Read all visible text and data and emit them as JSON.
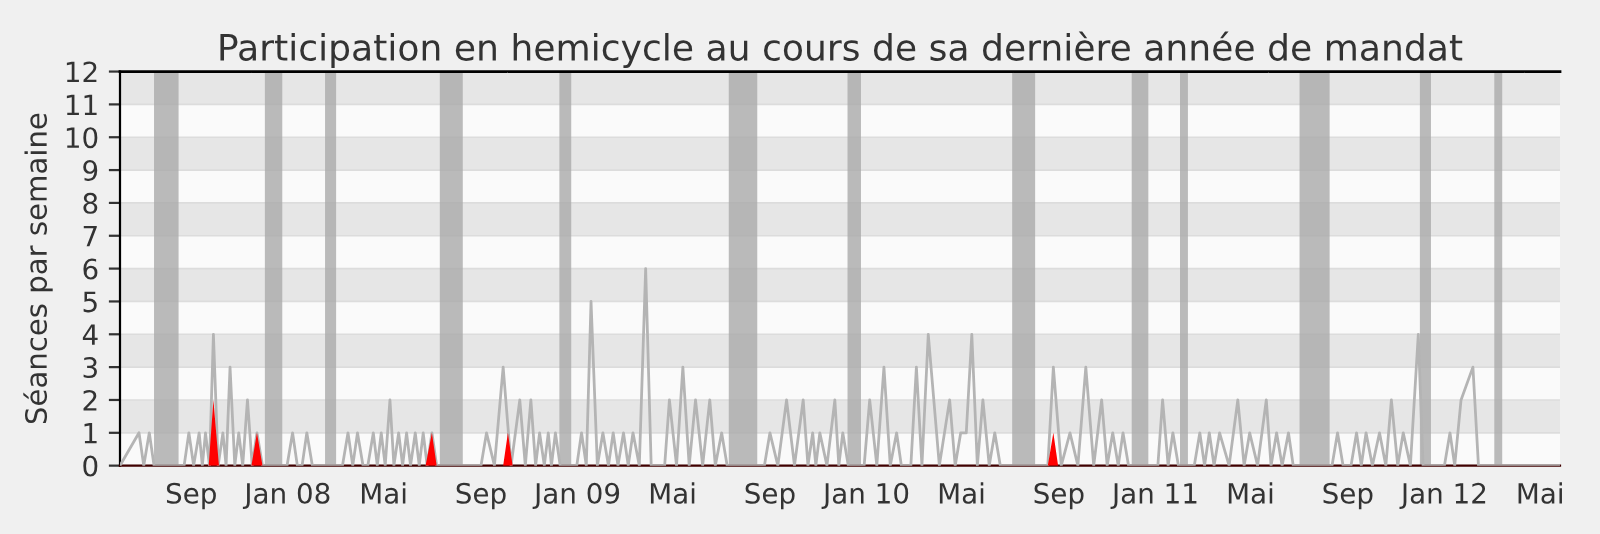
{
  "chart_data": {
    "type": "line",
    "title": "Participation en hemicycle au cours de sa dernière année de mandat",
    "ylabel": "Séances par semaine",
    "xlim": [
      "2007-06-03",
      "2012-05-26"
    ],
    "ylim": [
      0,
      12
    ],
    "xticks": [
      {
        "value": "2007-09-01",
        "label": "Sep"
      },
      {
        "value": "2008-01-01",
        "label": "Jan 08"
      },
      {
        "value": "2008-05-01",
        "label": "Mai"
      },
      {
        "value": "2008-09-01",
        "label": "Sep"
      },
      {
        "value": "2009-01-01",
        "label": "Jan 09"
      },
      {
        "value": "2009-05-01",
        "label": "Mai"
      },
      {
        "value": "2009-09-01",
        "label": "Sep"
      },
      {
        "value": "2010-01-01",
        "label": "Jan 10"
      },
      {
        "value": "2010-05-01",
        "label": "Mai"
      },
      {
        "value": "2010-09-01",
        "label": "Sep"
      },
      {
        "value": "2011-01-01",
        "label": "Jan 11"
      },
      {
        "value": "2011-05-01",
        "label": "Mai"
      },
      {
        "value": "2011-09-01",
        "label": "Sep"
      },
      {
        "value": "2012-01-01",
        "label": "Jan 12"
      },
      {
        "value": "2012-05-01",
        "label": "Mai"
      }
    ],
    "yticks": [
      0,
      1,
      2,
      3,
      4,
      5,
      6,
      7,
      8,
      9,
      10,
      11,
      12
    ],
    "grid": "y",
    "bands": [
      {
        "axis": "x",
        "from": "2007-07-16",
        "to": "2007-08-16",
        "color": "#aaaaaa"
      },
      {
        "axis": "x",
        "from": "2007-12-03",
        "to": "2007-12-25",
        "color": "#aaaaaa"
      },
      {
        "axis": "x",
        "from": "2008-02-17",
        "to": "2008-03-02",
        "color": "#aaaaaa"
      },
      {
        "axis": "x",
        "from": "2008-07-11",
        "to": "2008-08-09",
        "color": "#aaaaaa"
      },
      {
        "axis": "x",
        "from": "2008-12-09",
        "to": "2008-12-24",
        "color": "#aaaaaa"
      },
      {
        "axis": "x",
        "from": "2009-07-11",
        "to": "2009-08-16",
        "color": "#aaaaaa"
      },
      {
        "axis": "x",
        "from": "2009-12-08",
        "to": "2009-12-25",
        "color": "#aaaaaa"
      },
      {
        "axis": "x",
        "from": "2010-07-04",
        "to": "2010-08-02",
        "color": "#aaaaaa"
      },
      {
        "axis": "x",
        "from": "2010-12-02",
        "to": "2010-12-23",
        "color": "#aaaaaa"
      },
      {
        "axis": "x",
        "from": "2011-02-01",
        "to": "2011-02-11",
        "color": "#aaaaaa"
      },
      {
        "axis": "x",
        "from": "2011-07-02",
        "to": "2011-08-09",
        "color": "#aaaaaa"
      },
      {
        "axis": "x",
        "from": "2011-12-01",
        "to": "2011-12-15",
        "color": "#aaaaaa"
      },
      {
        "axis": "x",
        "from": "2012-03-04",
        "to": "2012-03-14",
        "color": "#aaaaaa"
      }
    ],
    "series": [
      {
        "color": "#b4b4b4",
        "x": [
          "2007-06-03",
          "2007-06-27",
          "2007-07-03",
          "2007-07-10",
          "2007-07-16",
          "2007-08-23",
          "2007-08-29",
          "2007-09-04",
          "2007-09-11",
          "2007-09-15",
          "2007-09-19",
          "2007-09-24",
          "2007-09-29",
          "2007-10-05",
          "2007-10-11",
          "2007-10-15",
          "2007-10-20",
          "2007-10-26",
          "2007-10-31",
          "2007-11-05",
          "2007-11-11",
          "2007-11-17",
          "2007-11-23",
          "2007-11-30",
          "2007-12-31",
          "2008-01-07",
          "2008-01-13",
          "2008-01-19",
          "2008-01-25",
          "2008-02-01",
          "2008-03-10",
          "2008-03-17",
          "2008-03-23",
          "2008-03-29",
          "2008-04-05",
          "2008-04-11",
          "2008-04-18",
          "2008-04-23",
          "2008-04-28",
          "2008-05-03",
          "2008-05-09",
          "2008-05-14",
          "2008-05-20",
          "2008-05-25",
          "2008-05-30",
          "2008-06-04",
          "2008-06-10",
          "2008-06-15",
          "2008-06-20",
          "2008-06-25",
          "2008-07-01",
          "2008-07-07",
          "2008-09-01",
          "2008-09-08",
          "2008-09-18",
          "2008-09-29",
          "2008-10-09",
          "2008-10-20",
          "2008-10-27",
          "2008-11-03",
          "2008-11-09",
          "2008-11-14",
          "2008-11-20",
          "2008-11-25",
          "2008-11-29",
          "2008-12-04",
          "2008-12-10",
          "2008-12-31",
          "2009-01-06",
          "2009-01-12",
          "2009-01-18",
          "2009-01-26",
          "2009-02-02",
          "2009-02-09",
          "2009-02-15",
          "2009-02-21",
          "2009-02-28",
          "2009-03-06",
          "2009-03-12",
          "2009-03-20",
          "2009-03-28",
          "2009-04-04",
          "2009-04-21",
          "2009-04-27",
          "2009-05-06",
          "2009-05-14",
          "2009-05-22",
          "2009-05-30",
          "2009-06-08",
          "2009-06-17",
          "2009-06-24",
          "2009-07-02",
          "2009-07-09",
          "2009-08-25",
          "2009-09-01",
          "2009-09-11",
          "2009-09-22",
          "2009-10-02",
          "2009-10-13",
          "2009-10-19",
          "2009-10-25",
          "2009-10-29",
          "2009-11-03",
          "2009-11-12",
          "2009-11-22",
          "2009-11-27",
          "2009-12-02",
          "2009-12-09",
          "2009-12-29",
          "2010-01-05",
          "2010-01-14",
          "2010-01-23",
          "2010-01-31",
          "2010-02-08",
          "2010-02-14",
          "2010-02-26",
          "2010-03-05",
          "2010-03-12",
          "2010-03-20",
          "2010-04-03",
          "2010-04-16",
          "2010-04-23",
          "2010-04-30",
          "2010-05-07",
          "2010-05-14",
          "2010-05-21",
          "2010-05-28",
          "2010-06-05",
          "2010-06-12",
          "2010-06-19",
          "2010-08-18",
          "2010-08-25",
          "2010-09-04",
          "2010-09-15",
          "2010-09-25",
          "2010-10-05",
          "2010-10-15",
          "2010-10-25",
          "2010-11-01",
          "2010-11-08",
          "2010-11-15",
          "2010-11-21",
          "2010-11-28",
          "2011-01-04",
          "2011-01-10",
          "2011-01-17",
          "2011-01-23",
          "2011-01-30",
          "2011-02-19",
          "2011-02-26",
          "2011-03-04",
          "2011-03-10",
          "2011-03-16",
          "2011-03-23",
          "2011-04-04",
          "2011-04-15",
          "2011-04-23",
          "2011-04-30",
          "2011-05-10",
          "2011-05-21",
          "2011-05-27",
          "2011-06-03",
          "2011-06-10",
          "2011-06-18",
          "2011-06-24",
          "2011-08-12",
          "2011-08-19",
          "2011-08-26",
          "2011-09-05",
          "2011-09-12",
          "2011-09-18",
          "2011-09-24",
          "2011-10-02",
          "2011-10-11",
          "2011-10-19",
          "2011-10-26",
          "2011-11-03",
          "2011-11-10",
          "2011-11-19",
          "2011-11-29",
          "2011-12-05",
          "2012-01-01",
          "2012-01-08",
          "2012-01-14",
          "2012-01-22",
          "2012-02-06",
          "2012-02-13",
          "2012-05-26"
        ],
        "values": [
          0,
          1,
          0,
          1,
          0,
          0,
          1,
          0,
          1,
          0,
          1,
          0,
          4,
          0,
          1,
          0,
          3,
          0,
          1,
          0,
          2,
          0,
          1,
          0,
          0,
          1,
          0,
          0,
          1,
          0,
          0,
          1,
          0,
          1,
          0,
          0,
          1,
          0,
          1,
          0,
          2,
          0,
          1,
          0,
          1,
          0,
          1,
          0,
          1,
          0,
          1,
          0,
          0,
          1,
          0,
          3,
          0,
          2,
          0,
          2,
          0,
          1,
          0,
          1,
          0,
          1,
          0,
          0,
          1,
          0,
          5,
          0,
          1,
          0,
          1,
          0,
          1,
          0,
          1,
          0,
          6,
          0,
          0,
          2,
          0,
          3,
          0,
          2,
          0,
          2,
          0,
          1,
          0,
          0,
          1,
          0,
          2,
          0,
          2,
          0,
          1,
          0,
          1,
          0,
          2,
          0,
          1,
          0,
          0,
          2,
          0,
          3,
          0,
          1,
          0,
          0,
          3,
          0,
          4,
          0,
          2,
          0,
          1,
          1,
          4,
          0,
          2,
          0,
          1,
          0,
          0,
          3,
          0,
          1,
          0,
          3,
          0,
          2,
          0,
          1,
          0,
          1,
          0,
          0,
          2,
          0,
          1,
          0,
          0,
          1,
          0,
          1,
          0,
          1,
          0,
          2,
          0,
          1,
          0,
          2,
          0,
          1,
          0,
          1,
          0,
          0,
          1,
          0,
          0,
          1,
          0,
          1,
          0,
          1,
          0,
          2,
          0,
          1,
          0,
          4,
          0,
          0,
          1,
          0,
          2,
          3,
          0,
          0
        ]
      },
      {
        "type": "area",
        "color": "#ff0000",
        "x": [
          "2007-09-23",
          "2007-09-29",
          "2007-10-06",
          "2007-11-16",
          "2007-11-23",
          "2007-11-30",
          "2008-06-23",
          "2008-07-01",
          "2008-07-07",
          "2008-09-29",
          "2008-10-05",
          "2008-10-11",
          "2010-08-18",
          "2010-08-25",
          "2010-08-31"
        ],
        "values": [
          0,
          2,
          0,
          0,
          1,
          0,
          0,
          1,
          0,
          0,
          1,
          0,
          0,
          1,
          0
        ]
      }
    ]
  }
}
